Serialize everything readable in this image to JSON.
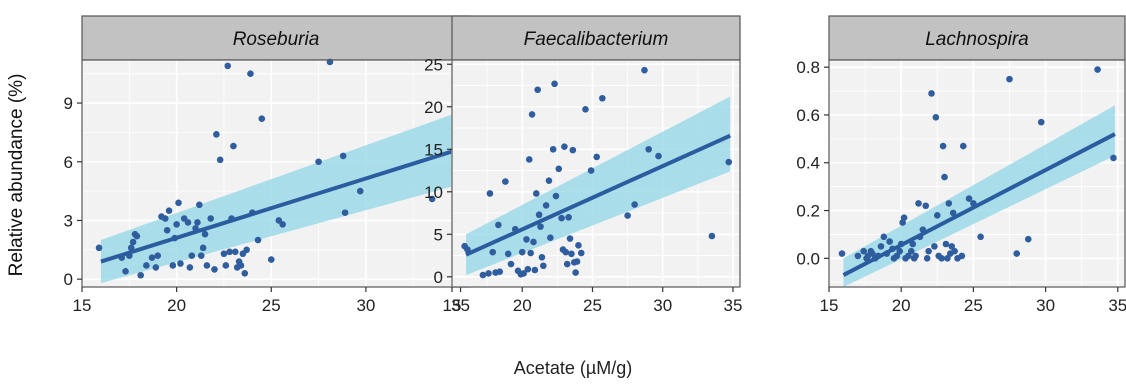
{
  "figure": {
    "ylabel": "Relative abundance (%)",
    "xlabel": "Acetate (µM/g)"
  },
  "colors": {
    "point": "#2f5d9e",
    "line": "#2b5c9f",
    "band": "#8fd6e6",
    "strip": "#c2c2c2",
    "panel_bg": "#f2f2f2",
    "grid": "#ffffff"
  },
  "chart_data": [
    {
      "type": "scatter",
      "title": "Roseburia",
      "xlim": [
        15,
        35.5
      ],
      "ylim": [
        -0.4,
        11.2
      ],
      "xticks": [
        15,
        20,
        25,
        30,
        35
      ],
      "yticks": [
        0,
        3,
        6,
        9
      ],
      "fit": {
        "x": [
          16,
          34.8
        ],
        "y": [
          0.9,
          6.6
        ],
        "lower": [
          -0.2,
          4.8
        ],
        "upper": [
          2.0,
          8.5
        ]
      },
      "points": [
        [
          15.9,
          1.6
        ],
        [
          17.1,
          1.1
        ],
        [
          17.3,
          0.4
        ],
        [
          17.5,
          1.2
        ],
        [
          17.6,
          1.6
        ],
        [
          17.7,
          1.9
        ],
        [
          17.8,
          2.3
        ],
        [
          17.9,
          2.2
        ],
        [
          18.1,
          0.2
        ],
        [
          18.4,
          0.7
        ],
        [
          18.7,
          1.1
        ],
        [
          18.9,
          0.6
        ],
        [
          19.0,
          1.2
        ],
        [
          19.2,
          3.2
        ],
        [
          19.4,
          3.1
        ],
        [
          19.5,
          2.5
        ],
        [
          19.6,
          3.5
        ],
        [
          19.8,
          0.7
        ],
        [
          19.9,
          2.1
        ],
        [
          20.0,
          2.8
        ],
        [
          20.1,
          3.9
        ],
        [
          20.2,
          0.8
        ],
        [
          20.4,
          3.1
        ],
        [
          20.6,
          2.9
        ],
        [
          20.7,
          0.6
        ],
        [
          20.8,
          1.2
        ],
        [
          21.0,
          2.6
        ],
        [
          21.1,
          2.9
        ],
        [
          21.2,
          3.8
        ],
        [
          21.3,
          1.2
        ],
        [
          21.4,
          1.6
        ],
        [
          21.5,
          2.3
        ],
        [
          21.6,
          0.7
        ],
        [
          21.8,
          3.1
        ],
        [
          22.0,
          0.5
        ],
        [
          22.1,
          7.4
        ],
        [
          22.3,
          6.1
        ],
        [
          22.5,
          1.3
        ],
        [
          22.6,
          0.7
        ],
        [
          22.7,
          10.9
        ],
        [
          22.8,
          1.4
        ],
        [
          22.9,
          3.1
        ],
        [
          23.0,
          6.8
        ],
        [
          23.1,
          1.4
        ],
        [
          23.2,
          0.6
        ],
        [
          23.3,
          0.9
        ],
        [
          23.4,
          0.7
        ],
        [
          23.5,
          1.3
        ],
        [
          23.6,
          0.3
        ],
        [
          23.7,
          1.5
        ],
        [
          23.9,
          10.5
        ],
        [
          24.0,
          3.4
        ],
        [
          24.3,
          2.0
        ],
        [
          24.5,
          8.2
        ],
        [
          25.0,
          1.0
        ],
        [
          25.4,
          3.0
        ],
        [
          25.6,
          2.8
        ],
        [
          27.5,
          6.0
        ],
        [
          28.1,
          11.1
        ],
        [
          28.8,
          6.3
        ],
        [
          28.9,
          3.4
        ],
        [
          29.7,
          4.5
        ],
        [
          33.5,
          4.1
        ],
        [
          34.7,
          5.5
        ]
      ]
    },
    {
      "type": "scatter",
      "title": "Faecalibacterium",
      "xlim": [
        15,
        35.5
      ],
      "ylim": [
        -1.2,
        25.5
      ],
      "xticks": [
        15,
        20,
        25,
        30,
        35
      ],
      "yticks": [
        0,
        5,
        10,
        15,
        20,
        25
      ],
      "fit": {
        "x": [
          16,
          34.8
        ],
        "y": [
          2.6,
          16.6
        ],
        "lower": [
          0.2,
          12.4
        ],
        "upper": [
          5.0,
          21.2
        ]
      },
      "points": [
        [
          15.9,
          3.6
        ],
        [
          16.1,
          3.2
        ],
        [
          17.2,
          0.2
        ],
        [
          17.6,
          0.4
        ],
        [
          17.7,
          9.8
        ],
        [
          17.9,
          2.9
        ],
        [
          18.1,
          0.5
        ],
        [
          18.3,
          6.1
        ],
        [
          18.4,
          0.6
        ],
        [
          18.8,
          11.2
        ],
        [
          19.0,
          2.7
        ],
        [
          19.2,
          1.5
        ],
        [
          19.5,
          5.6
        ],
        [
          19.7,
          0.7
        ],
        [
          19.9,
          0.3
        ],
        [
          20.0,
          2.9
        ],
        [
          20.1,
          0.4
        ],
        [
          20.3,
          4.4
        ],
        [
          20.4,
          0.9
        ],
        [
          20.5,
          13.8
        ],
        [
          20.6,
          2.8
        ],
        [
          20.7,
          19.1
        ],
        [
          20.8,
          4.1
        ],
        [
          20.9,
          0.8
        ],
        [
          21.0,
          9.8
        ],
        [
          21.1,
          22.0
        ],
        [
          21.2,
          7.3
        ],
        [
          21.3,
          5.9
        ],
        [
          21.4,
          2.3
        ],
        [
          21.5,
          1.3
        ],
        [
          21.7,
          8.4
        ],
        [
          21.9,
          11.3
        ],
        [
          22.0,
          4.6
        ],
        [
          22.2,
          15.0
        ],
        [
          22.3,
          22.7
        ],
        [
          22.4,
          9.5
        ],
        [
          22.6,
          12.7
        ],
        [
          22.8,
          6.9
        ],
        [
          22.9,
          3.2
        ],
        [
          23.0,
          15.3
        ],
        [
          23.1,
          2.9
        ],
        [
          23.2,
          1.5
        ],
        [
          23.3,
          7.0
        ],
        [
          23.4,
          4.5
        ],
        [
          23.5,
          2.7
        ],
        [
          23.6,
          14.9
        ],
        [
          23.7,
          1.7
        ],
        [
          23.8,
          0.5
        ],
        [
          23.9,
          1.8
        ],
        [
          24.0,
          3.7
        ],
        [
          24.2,
          2.8
        ],
        [
          24.5,
          19.7
        ],
        [
          24.9,
          12.5
        ],
        [
          25.3,
          14.1
        ],
        [
          25.7,
          21.0
        ],
        [
          27.5,
          7.2
        ],
        [
          28.0,
          8.5
        ],
        [
          28.7,
          24.3
        ],
        [
          29.0,
          15.0
        ],
        [
          29.7,
          14.2
        ],
        [
          33.5,
          4.8
        ],
        [
          34.7,
          13.5
        ]
      ]
    },
    {
      "type": "scatter",
      "title": "Lachnospira",
      "xlim": [
        15,
        35.5
      ],
      "ylim": [
        -0.12,
        0.83
      ],
      "xticks": [
        15,
        20,
        25,
        30,
        35
      ],
      "yticks": [
        0.0,
        0.2,
        0.4,
        0.6,
        0.8
      ],
      "fit": {
        "x": [
          16,
          34.8
        ],
        "y": [
          -0.07,
          0.52
        ],
        "lower": [
          -0.12,
          0.43
        ],
        "upper": [
          0.0,
          0.64
        ]
      },
      "points": [
        [
          15.9,
          0.02
        ],
        [
          17.0,
          0.01
        ],
        [
          17.4,
          0.03
        ],
        [
          17.6,
          0.0
        ],
        [
          17.7,
          0.01
        ],
        [
          17.9,
          0.03
        ],
        [
          18.0,
          0.02
        ],
        [
          18.2,
          0.0
        ],
        [
          18.4,
          0.01
        ],
        [
          18.6,
          0.05
        ],
        [
          18.8,
          0.09
        ],
        [
          19.0,
          0.02
        ],
        [
          19.2,
          0.07
        ],
        [
          19.4,
          0.04
        ],
        [
          19.5,
          0.0
        ],
        [
          19.7,
          0.01
        ],
        [
          19.9,
          0.03
        ],
        [
          20.0,
          0.06
        ],
        [
          20.1,
          0.15
        ],
        [
          20.2,
          0.17
        ],
        [
          20.3,
          0.0
        ],
        [
          20.5,
          0.01
        ],
        [
          20.7,
          0.03
        ],
        [
          20.8,
          0.06
        ],
        [
          20.9,
          0.0
        ],
        [
          21.0,
          0.01
        ],
        [
          21.2,
          0.23
        ],
        [
          21.3,
          0.09
        ],
        [
          21.5,
          0.12
        ],
        [
          21.7,
          0.22
        ],
        [
          21.8,
          0.0
        ],
        [
          21.9,
          0.03
        ],
        [
          22.1,
          0.69
        ],
        [
          22.3,
          0.05
        ],
        [
          22.4,
          0.59
        ],
        [
          22.5,
          0.18
        ],
        [
          22.6,
          0.01
        ],
        [
          22.8,
          0.0
        ],
        [
          22.9,
          0.47
        ],
        [
          23.0,
          0.34
        ],
        [
          23.1,
          0.06
        ],
        [
          23.2,
          0.0
        ],
        [
          23.3,
          0.23
        ],
        [
          23.4,
          0.02
        ],
        [
          23.5,
          0.05
        ],
        [
          23.6,
          0.19
        ],
        [
          23.7,
          0.03
        ],
        [
          23.9,
          0.0
        ],
        [
          24.2,
          0.01
        ],
        [
          24.3,
          0.47
        ],
        [
          24.7,
          0.25
        ],
        [
          25.0,
          0.23
        ],
        [
          25.5,
          0.09
        ],
        [
          27.5,
          0.75
        ],
        [
          28.0,
          0.02
        ],
        [
          28.8,
          0.08
        ],
        [
          29.7,
          0.57
        ],
        [
          33.6,
          0.79
        ],
        [
          34.7,
          0.42
        ]
      ]
    }
  ]
}
